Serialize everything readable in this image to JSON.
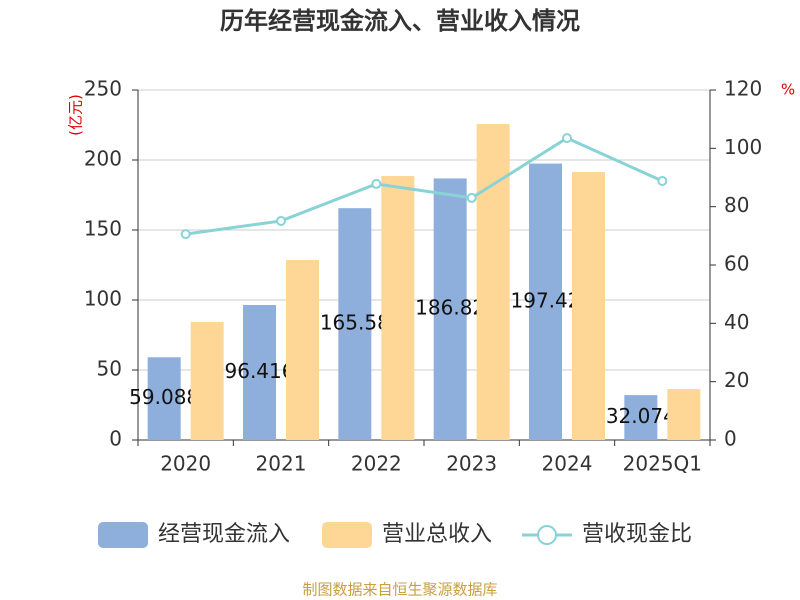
{
  "chart_data": {
    "type": "bar",
    "title": "历年经营现金流入、营业收入情况",
    "y_unit": "(亿元)",
    "y2_unit": "%",
    "categories": [
      "2020",
      "2021",
      "2022",
      "2023",
      "2024",
      "2025Q1"
    ],
    "series": [
      {
        "name": "经营现金流入",
        "type": "bar",
        "color": "#8eaedb",
        "values": [
          59.088,
          96.416,
          165.58,
          186.82,
          197.42,
          32.074
        ],
        "show_labels": true
      },
      {
        "name": "营业总收入",
        "type": "bar",
        "color": "#fed797",
        "values": [
          84.3,
          128.6,
          188.6,
          225.7,
          191.4,
          36.4
        ]
      },
      {
        "name": "营收现金比",
        "type": "line",
        "axis": "y2",
        "color": "#89d3d6",
        "values": [
          70.6,
          75.1,
          87.8,
          83.0,
          103.5,
          88.8
        ]
      }
    ],
    "ylim": [
      0,
      250
    ],
    "yticks": [
      0,
      50,
      100,
      150,
      200,
      250
    ],
    "y2lim": [
      0,
      120
    ],
    "y2ticks": [
      0,
      20,
      40,
      60,
      80,
      100,
      120
    ],
    "grid": true,
    "legend": "bottom",
    "source": "制图数据来自恒生聚源数据库"
  }
}
